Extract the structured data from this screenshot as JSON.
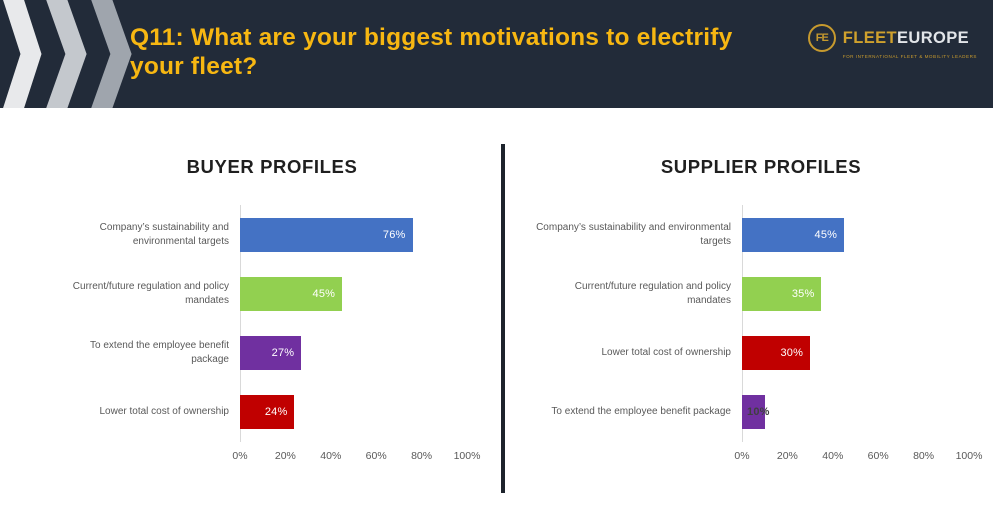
{
  "header": {
    "title_line1": "Q11: What are your biggest motivations to electrify",
    "title_line2": "your fleet?",
    "logo": {
      "monogram": "FE",
      "name_part1": "FLEET",
      "name_part2": "EUROPE",
      "tagline": "FOR INTERNATIONAL FLEET & MOBILITY LEADERS"
    }
  },
  "colors": {
    "header_bg": "#222B39",
    "accent_yellow": "#F7B712",
    "bar_blue": "#4472C4",
    "bar_green": "#92D050",
    "bar_purple": "#7030A0",
    "bar_red": "#C00000",
    "axis_line": "#D9D9D9",
    "chart_text": "#595959"
  },
  "chart_data": [
    {
      "type": "bar",
      "orientation": "horizontal",
      "title": "BUYER PROFILES",
      "categories": [
        "Company’s sustainability and environmental targets",
        "Current/future regulation and policy mandates",
        "To extend the employee benefit package",
        "Lower total cost of ownership"
      ],
      "values": [
        76,
        45,
        27,
        24
      ],
      "labels": [
        "76%",
        "45%",
        "27%",
        "24%"
      ],
      "bar_colors": [
        "#4472C4",
        "#92D050",
        "#7030A0",
        "#C00000"
      ],
      "label_colors": [
        "#FFFFFF",
        "#FFFFFF",
        "#FFFFFF",
        "#FFFFFF"
      ],
      "label_outside": [
        false,
        false,
        false,
        false
      ],
      "xlim": [
        0,
        100
      ],
      "x_ticks": [
        "0%",
        "20%",
        "40%",
        "60%",
        "80%",
        "100%"
      ],
      "grid": false,
      "legend": false,
      "value_label_position": "inside-end"
    },
    {
      "type": "bar",
      "orientation": "horizontal",
      "title": "SUPPLIER PROFILES",
      "categories": [
        "Company’s sustainability and environmental targets",
        "Current/future regulation and policy mandates",
        "Lower total cost of ownership",
        "To extend the employee benefit package"
      ],
      "values": [
        45,
        35,
        30,
        10
      ],
      "labels": [
        "45%",
        "35%",
        "30%",
        "10%"
      ],
      "bar_colors": [
        "#4472C4",
        "#92D050",
        "#C00000",
        "#7030A0"
      ],
      "label_colors": [
        "#FFFFFF",
        "#FFFFFF",
        "#FFFFFF",
        "#3F3F3F"
      ],
      "label_outside": [
        false,
        false,
        false,
        true
      ],
      "xlim": [
        0,
        100
      ],
      "x_ticks": [
        "0%",
        "20%",
        "40%",
        "60%",
        "80%",
        "100%"
      ],
      "grid": false,
      "legend": false,
      "value_label_position": "inside-end"
    }
  ]
}
